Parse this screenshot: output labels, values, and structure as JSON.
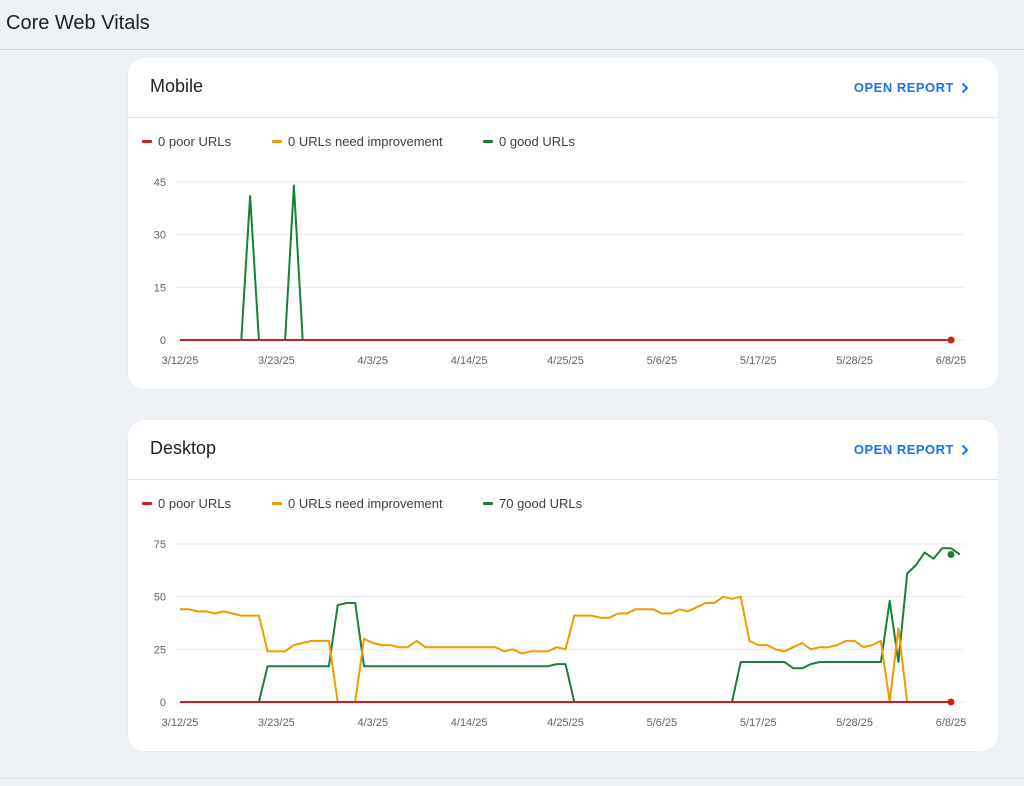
{
  "page": {
    "title": "Core Web Vitals"
  },
  "colors": {
    "poor": "#c5221f",
    "needs": "#f29900",
    "good": "#188038",
    "link": "#1a73e8"
  },
  "cards": [
    {
      "title": "Mobile",
      "open_report": "OPEN REPORT",
      "legend": [
        "0 poor URLs",
        "0 URLs need improvement",
        "0 good URLs"
      ]
    },
    {
      "title": "Desktop",
      "open_report": "OPEN REPORT",
      "legend": [
        "0 poor URLs",
        "0 URLs need improvement",
        "70 good URLs"
      ]
    }
  ],
  "chart_data": [
    {
      "type": "line",
      "chart": "Mobile",
      "x_tick_labels": [
        "3/12/25",
        "3/23/25",
        "4/3/25",
        "4/14/25",
        "4/25/25",
        "5/6/25",
        "5/17/25",
        "5/28/25",
        "6/8/25"
      ],
      "y_ticks": [
        0,
        15,
        30,
        45
      ],
      "ylim": [
        0,
        45
      ],
      "x_range": [
        "2025-03-12",
        "2025-06-08"
      ],
      "series": [
        {
          "name": "poor",
          "points": [
            [
              "2025-03-12",
              0
            ],
            [
              "2025-06-08",
              0
            ]
          ]
        },
        {
          "name": "need improvement",
          "points": [
            [
              "2025-03-12",
              0
            ],
            [
              "2025-06-08",
              0
            ]
          ]
        },
        {
          "name": "good",
          "points": [
            [
              "2025-03-12",
              0
            ],
            [
              "2025-03-19",
              0
            ],
            [
              "2025-03-20",
              41
            ],
            [
              "2025-03-21",
              0
            ],
            [
              "2025-03-24",
              0
            ],
            [
              "2025-03-25",
              44
            ],
            [
              "2025-03-26",
              0
            ],
            [
              "2025-06-08",
              0
            ]
          ]
        }
      ]
    },
    {
      "type": "line",
      "chart": "Desktop",
      "x_tick_labels": [
        "3/12/25",
        "3/23/25",
        "4/3/25",
        "4/14/25",
        "4/25/25",
        "5/6/25",
        "5/17/25",
        "5/28/25",
        "6/8/25"
      ],
      "y_ticks": [
        0,
        25,
        50,
        75
      ],
      "ylim": [
        0,
        75
      ],
      "x_range": [
        "2025-03-12",
        "2025-06-08"
      ],
      "series": [
        {
          "name": "poor",
          "points": [
            [
              "2025-03-12",
              0
            ],
            [
              "2025-06-08",
              0
            ]
          ]
        },
        {
          "name": "need improvement",
          "points": [
            [
              "2025-03-12",
              44
            ],
            [
              "2025-03-13",
              44
            ],
            [
              "2025-03-14",
              43
            ],
            [
              "2025-03-15",
              43
            ],
            [
              "2025-03-16",
              42
            ],
            [
              "2025-03-17",
              43
            ],
            [
              "2025-03-18",
              42
            ],
            [
              "2025-03-19",
              41
            ],
            [
              "2025-03-20",
              41
            ],
            [
              "2025-03-21",
              41
            ],
            [
              "2025-03-22",
              24
            ],
            [
              "2025-03-23",
              24
            ],
            [
              "2025-03-24",
              24
            ],
            [
              "2025-03-25",
              27
            ],
            [
              "2025-03-26",
              28
            ],
            [
              "2025-03-27",
              29
            ],
            [
              "2025-03-28",
              29
            ],
            [
              "2025-03-29",
              29
            ],
            [
              "2025-03-30",
              0
            ],
            [
              "2025-03-31",
              0
            ],
            [
              "2025-04-01",
              0
            ],
            [
              "2025-04-02",
              30
            ],
            [
              "2025-04-03",
              28
            ],
            [
              "2025-04-04",
              27
            ],
            [
              "2025-04-05",
              27
            ],
            [
              "2025-04-06",
              26
            ],
            [
              "2025-04-07",
              26
            ],
            [
              "2025-04-08",
              29
            ],
            [
              "2025-04-09",
              26
            ],
            [
              "2025-04-10",
              26
            ],
            [
              "2025-04-11",
              26
            ],
            [
              "2025-04-12",
              26
            ],
            [
              "2025-04-13",
              26
            ],
            [
              "2025-04-14",
              26
            ],
            [
              "2025-04-15",
              26
            ],
            [
              "2025-04-16",
              26
            ],
            [
              "2025-04-17",
              26
            ],
            [
              "2025-04-18",
              24
            ],
            [
              "2025-04-19",
              25
            ],
            [
              "2025-04-20",
              23
            ],
            [
              "2025-04-21",
              24
            ],
            [
              "2025-04-22",
              24
            ],
            [
              "2025-04-23",
              24
            ],
            [
              "2025-04-24",
              26
            ],
            [
              "2025-04-25",
              25
            ],
            [
              "2025-04-26",
              41
            ],
            [
              "2025-04-27",
              41
            ],
            [
              "2025-04-28",
              41
            ],
            [
              "2025-04-29",
              40
            ],
            [
              "2025-04-30",
              40
            ],
            [
              "2025-05-01",
              42
            ],
            [
              "2025-05-02",
              42
            ],
            [
              "2025-05-03",
              44
            ],
            [
              "2025-05-04",
              44
            ],
            [
              "2025-05-05",
              44
            ],
            [
              "2025-05-06",
              42
            ],
            [
              "2025-05-07",
              42
            ],
            [
              "2025-05-08",
              44
            ],
            [
              "2025-05-09",
              43
            ],
            [
              "2025-05-10",
              45
            ],
            [
              "2025-05-11",
              47
            ],
            [
              "2025-05-12",
              47
            ],
            [
              "2025-05-13",
              50
            ],
            [
              "2025-05-14",
              49
            ],
            [
              "2025-05-15",
              50
            ],
            [
              "2025-05-16",
              29
            ],
            [
              "2025-05-17",
              27
            ],
            [
              "2025-05-18",
              27
            ],
            [
              "2025-05-19",
              25
            ],
            [
              "2025-05-20",
              24
            ],
            [
              "2025-05-21",
              26
            ],
            [
              "2025-05-22",
              28
            ],
            [
              "2025-05-23",
              25
            ],
            [
              "2025-05-24",
              26
            ],
            [
              "2025-05-25",
              26
            ],
            [
              "2025-05-26",
              27
            ],
            [
              "2025-05-27",
              29
            ],
            [
              "2025-05-28",
              29
            ],
            [
              "2025-05-29",
              26
            ],
            [
              "2025-05-30",
              27
            ],
            [
              "2025-05-31",
              29
            ],
            [
              "2025-06-01",
              0
            ],
            [
              "2025-06-02",
              35
            ],
            [
              "2025-06-03",
              0
            ],
            [
              "2025-06-08",
              0
            ]
          ]
        },
        {
          "name": "good",
          "points": [
            [
              "2025-03-12",
              0
            ],
            [
              "2025-03-21",
              0
            ],
            [
              "2025-03-22",
              17
            ],
            [
              "2025-03-29",
              17
            ],
            [
              "2025-03-30",
              46
            ],
            [
              "2025-03-31",
              47
            ],
            [
              "2025-04-01",
              47
            ],
            [
              "2025-04-02",
              17
            ],
            [
              "2025-04-23",
              17
            ],
            [
              "2025-04-24",
              18
            ],
            [
              "2025-04-25",
              18
            ],
            [
              "2025-04-26",
              0
            ],
            [
              "2025-05-14",
              0
            ],
            [
              "2025-05-15",
              19
            ],
            [
              "2025-05-20",
              19
            ],
            [
              "2025-05-21",
              16
            ],
            [
              "2025-05-22",
              16
            ],
            [
              "2025-05-23",
              18
            ],
            [
              "2025-05-24",
              19
            ],
            [
              "2025-05-31",
              19
            ],
            [
              "2025-06-01",
              48
            ],
            [
              "2025-06-02",
              19
            ],
            [
              "2025-06-03",
              61
            ],
            [
              "2025-06-04",
              65
            ],
            [
              "2025-06-05",
              71
            ],
            [
              "2025-06-06",
              68
            ],
            [
              "2025-06-07",
              73
            ],
            [
              "2025-06-08",
              73
            ],
            [
              "2025-06-09",
              70
            ]
          ]
        }
      ]
    }
  ]
}
